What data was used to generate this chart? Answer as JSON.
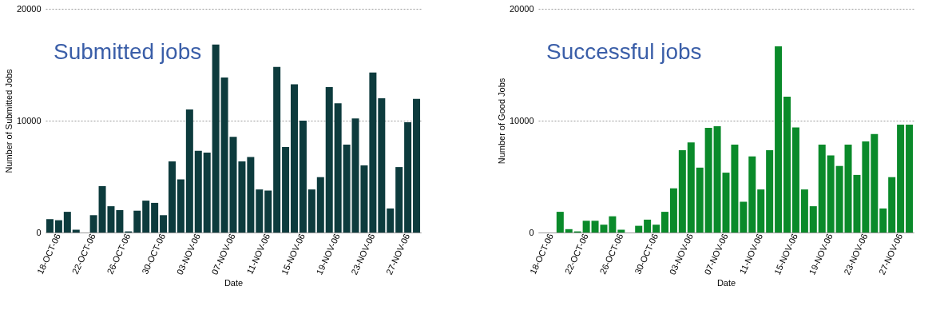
{
  "chart_data": [
    {
      "type": "bar",
      "categories": [
        null,
        "18-OCT-06",
        null,
        null,
        null,
        "22-OCT-06",
        null,
        null,
        null,
        "26-OCT-06",
        null,
        null,
        null,
        "30-OCT-06",
        null,
        null,
        null,
        "03-NOV-06",
        null,
        null,
        null,
        "07-NOV-06",
        null,
        null,
        null,
        "11-NOV-06",
        null,
        null,
        null,
        "15-NOV-06",
        null,
        null,
        null,
        "19-NOV-06",
        null,
        null,
        null,
        "23-NOV-06",
        null,
        null,
        null,
        "27-NOV-06",
        null
      ],
      "values": [
        1200,
        1100,
        1850,
        250,
        0,
        1550,
        4150,
        2350,
        2000,
        100,
        1950,
        2850,
        2650,
        1550,
        6350,
        4750,
        11000,
        7300,
        7150,
        16800,
        13850,
        8550,
        6350,
        6750,
        3850,
        3750,
        14800,
        7650,
        13250,
        10000,
        3850,
        4950,
        13000,
        11550,
        7850,
        10200,
        6000,
        14300,
        12000,
        2150,
        5850,
        9850,
        11950
      ],
      "color": "#0d3b3d",
      "ylim": [
        0,
        20000
      ],
      "yticks": [
        0,
        10000,
        20000
      ],
      "grid": "y",
      "xlabel": "Date",
      "ylabel": "Number of Submitted Jobs",
      "annotations": [
        "Submitted jobs"
      ]
    },
    {
      "type": "bar",
      "categories": [
        null,
        "18-OCT-06",
        null,
        null,
        null,
        "22-OCT-06",
        null,
        null,
        null,
        "26-OCT-06",
        null,
        null,
        null,
        "30-OCT-06",
        null,
        null,
        null,
        "03-NOV-06",
        null,
        null,
        null,
        "07-NOV-06",
        null,
        null,
        null,
        "11-NOV-06",
        null,
        null,
        null,
        "15-NOV-06",
        null,
        null,
        null,
        "19-NOV-06",
        null,
        null,
        null,
        "23-NOV-06",
        null,
        null,
        null,
        "27-NOV-06",
        null
      ],
      "values": [
        0,
        0,
        1850,
        300,
        100,
        1050,
        1050,
        700,
        1450,
        250,
        0,
        600,
        1150,
        700,
        1850,
        3950,
        7350,
        8050,
        5800,
        9350,
        9500,
        5350,
        7850,
        2750,
        6800,
        3850,
        7350,
        16650,
        12150,
        9400,
        3850,
        2350,
        7850,
        6900,
        5950,
        7850,
        5150,
        8150,
        8800,
        2150,
        4950,
        9650,
        9650
      ],
      "color": "#0a8a2a",
      "ylim": [
        0,
        20000
      ],
      "yticks": [
        0,
        10000,
        20000
      ],
      "grid": "y",
      "xlabel": "Date",
      "ylabel": "Number of Good Jobs",
      "annotations": [
        "Successful jobs"
      ]
    }
  ]
}
